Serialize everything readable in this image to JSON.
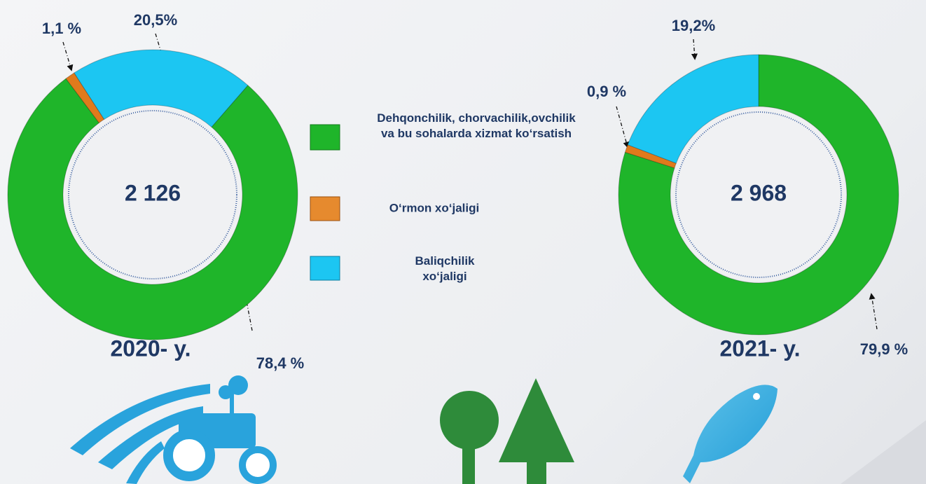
{
  "chart_data": [
    {
      "type": "donut",
      "title": "2020- y.",
      "center_label": "2 126",
      "categories": [
        "Dehqonchilik, chorvachilik,ovchilik va bu sohalarda xizmat ko‘rsatish",
        "O‘rmon xo‘jaligi",
        "Baliqchilik xo‘jaligi"
      ],
      "values": [
        78.4,
        1.1,
        20.5
      ],
      "value_labels": [
        "78,4 %",
        "1,1 %",
        "20,5%"
      ],
      "colors": [
        "#1fb52a",
        "#e07a1c",
        "#1cc6f2"
      ]
    },
    {
      "type": "donut",
      "title": "2021- y.",
      "center_label": "2 968",
      "values": [
        79.9,
        0.9,
        19.2
      ],
      "value_labels": [
        "79,9 %",
        "0,9 %",
        "19,2%"
      ],
      "colors": [
        "#1fb52a",
        "#e07a1c",
        "#1cc6f2"
      ]
    }
  ]
}
